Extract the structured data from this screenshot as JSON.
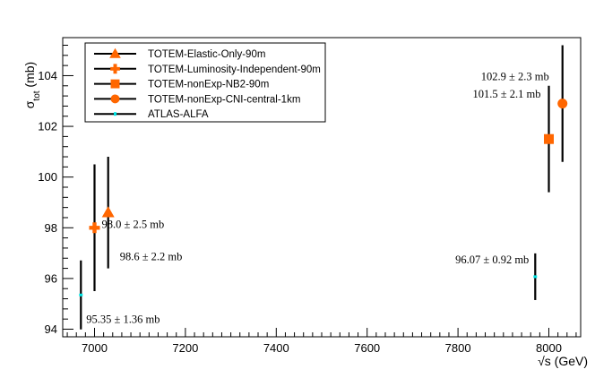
{
  "chart_data": {
    "type": "scatter",
    "title": "",
    "xlabel": "√s (GeV)",
    "ylabel": "σtot (mb)",
    "ylabel_main": "σ",
    "ylabel_sub": "tot",
    "ylabel_unit": " (mb)",
    "xlim": [
      6930,
      8070
    ],
    "ylim": [
      93.7,
      105.5
    ],
    "xticks": [
      7000,
      7200,
      7400,
      7600,
      7800,
      8000
    ],
    "yticks": [
      94,
      96,
      98,
      100,
      102,
      104
    ],
    "grid": false,
    "legend_position": "top-left",
    "series": [
      {
        "name": "TOTEM-Elastic-Only-90m",
        "marker": "triangle",
        "color": "#ff6600",
        "points": [
          {
            "x": 7030,
            "y": 98.6,
            "err": 2.2,
            "label": "98.6 ± 2.2 mb"
          }
        ]
      },
      {
        "name": "TOTEM-Luminosity-Independent-90m",
        "marker": "cross",
        "color": "#ff6600",
        "points": [
          {
            "x": 7000,
            "y": 98.0,
            "err": 2.5,
            "label": "98.0 ± 2.5 mb"
          }
        ]
      },
      {
        "name": "TOTEM-nonExp-NB2-90m",
        "marker": "square",
        "color": "#ff6600",
        "points": [
          {
            "x": 8000,
            "y": 101.5,
            "err": 2.1,
            "label": "101.5 ± 2.1 mb"
          }
        ]
      },
      {
        "name": "TOTEM-nonExp-CNI-central-1km",
        "marker": "circle",
        "color": "#ff6600",
        "points": [
          {
            "x": 8030,
            "y": 102.9,
            "err": 2.3,
            "label": "102.9 ± 2.3 mb"
          }
        ]
      },
      {
        "name": "ATLAS-ALFA",
        "marker": "dash",
        "color": "#00e5e5",
        "points": [
          {
            "x": 6970,
            "y": 95.35,
            "err": 1.36,
            "label": "95.35 ± 1.36 mb"
          },
          {
            "x": 7970,
            "y": 96.07,
            "err": 0.92,
            "label": "96.07 ± 0.92 mb"
          }
        ]
      }
    ],
    "colors": {
      "error_bar": "#000000",
      "frame": "#000000"
    }
  }
}
